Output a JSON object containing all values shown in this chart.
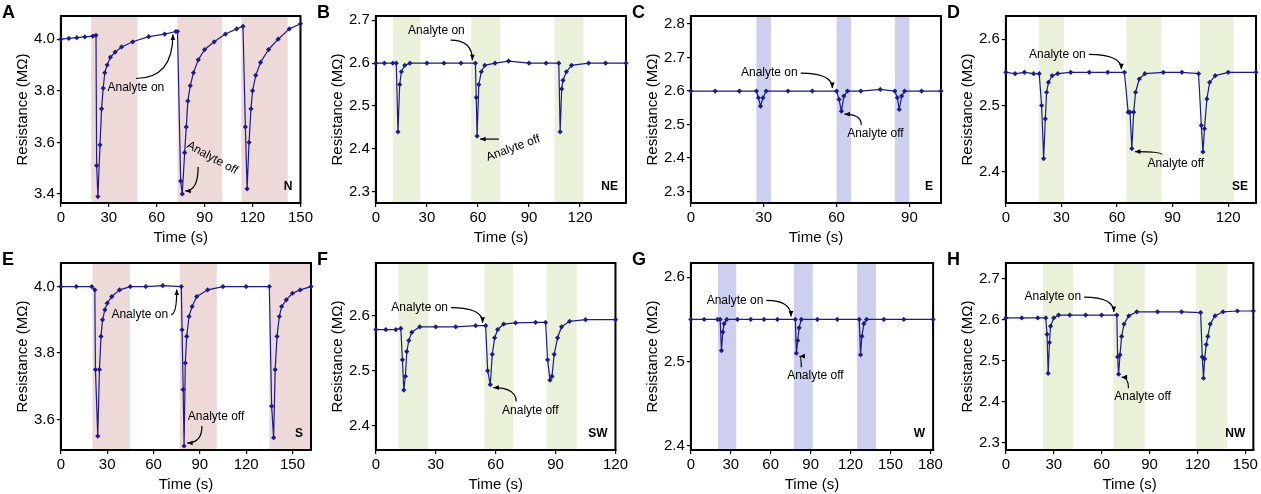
{
  "chart_data": [
    {
      "type": "line",
      "title": "A",
      "xlabel": "Time (s)",
      "ylabel": "Resistance (MΩ)",
      "xlim": [
        0,
        150
      ],
      "ylim": [
        3.365,
        4.09
      ],
      "xticks": [
        0,
        30,
        60,
        90,
        120,
        150
      ],
      "yticks": [
        3.4,
        3.6,
        3.8,
        {
          "value": 4,
          "label": "4.0"
        }
      ],
      "marker": "diamond",
      "line_style": "solid",
      "legend": false,
      "bands": [
        {
          "axis": "x",
          "from": 19,
          "to": 48,
          "color": "#eed9d9"
        },
        {
          "axis": "x",
          "from": 73,
          "to": 101,
          "color": "#eed9d9"
        },
        {
          "axis": "x",
          "from": 113,
          "to": 142,
          "color": "#eed9d9"
        }
      ],
      "annotations": [
        "N",
        {
          "text": "Analyte on",
          "x": 72,
          "y": 4.03
        },
        {
          "text": "Analyte off",
          "x": 76,
          "y": 3.4
        }
      ],
      "series": [
        {
          "color": "#1b1b8f",
          "x": [
            0,
            5,
            10,
            15,
            20,
            22,
            22.4,
            23.2,
            24.5,
            25.5,
            26.5,
            27.5,
            29,
            31,
            34,
            38,
            45,
            55,
            65,
            72,
            73,
            75,
            76,
            77.5,
            78.5,
            79.5,
            81,
            83,
            86,
            90,
            96,
            103,
            110,
            114,
            115.5,
            116.6,
            117.8,
            119,
            120,
            122,
            125,
            130,
            136,
            143,
            150
          ],
          "values": [
            4.0,
            4.003,
            4.006,
            4.009,
            4.012,
            4.015,
            3.51,
            3.39,
            3.59,
            3.73,
            3.81,
            3.87,
            3.9,
            3.93,
            3.95,
            3.97,
            3.99,
            4.01,
            4.02,
            4.03,
            4.03,
            3.45,
            3.4,
            3.56,
            3.66,
            3.76,
            3.82,
            3.87,
            3.92,
            3.96,
            3.99,
            4.02,
            4.04,
            4.05,
            3.66,
            3.42,
            3.6,
            3.73,
            3.8,
            3.86,
            3.91,
            3.96,
            4.0,
            4.04,
            4.06
          ]
        }
      ]
    },
    {
      "type": "line",
      "title": "B",
      "xlabel": "Time (s)",
      "ylabel": "Resistance (MΩ)",
      "xlim": [
        0,
        147
      ],
      "ylim": [
        2.274,
        2.71
      ],
      "xticks": [
        0,
        30,
        60,
        90,
        120
      ],
      "yticks": [
        2.3,
        2.4,
        2.5,
        2.6,
        2.7
      ],
      "marker": "diamond",
      "line_style": "solid",
      "legend": false,
      "bands": [
        {
          "axis": "x",
          "from": 10,
          "to": 26,
          "color": "#e9f2d9"
        },
        {
          "axis": "x",
          "from": 56,
          "to": 73,
          "color": "#e9f2d9"
        },
        {
          "axis": "x",
          "from": 105,
          "to": 122,
          "color": "#e9f2d9"
        }
      ],
      "annotations": [
        "NE",
        {
          "text": "Analyte on",
          "x": 58.5,
          "y": 2.6
        },
        {
          "text": "Analyte off",
          "x": 59.5,
          "y": 2.43
        }
      ],
      "series": [
        {
          "color": "#1b1b8f",
          "x": [
            0,
            5,
            10,
            12,
            13,
            14,
            15,
            17,
            20,
            30,
            40,
            50,
            58.5,
            59,
            59.5,
            60.5,
            62,
            64,
            70,
            78,
            90,
            100,
            107.5,
            108.3,
            109.2,
            110,
            112,
            115,
            125,
            135,
            147
          ],
          "values": [
            2.6,
            2.6,
            2.6,
            2.6,
            2.44,
            2.55,
            2.58,
            2.595,
            2.6,
            2.6,
            2.6,
            2.6,
            2.6,
            2.52,
            2.43,
            2.55,
            2.58,
            2.595,
            2.6,
            2.605,
            2.6,
            2.6,
            2.6,
            2.44,
            2.54,
            2.56,
            2.58,
            2.595,
            2.6,
            2.6,
            2.6
          ]
        }
      ]
    },
    {
      "type": "line",
      "title": "C",
      "xlabel": "Time (s)",
      "ylabel": "Resistance (MΩ)",
      "xlim": [
        0,
        103
      ],
      "ylim": [
        2.266,
        2.824
      ],
      "xticks": [
        0,
        30,
        60,
        90
      ],
      "yticks": [
        2.3,
        2.4,
        2.5,
        2.6,
        2.7,
        2.8
      ],
      "marker": "diamond",
      "line_style": "solid",
      "legend": false,
      "bands": [
        {
          "axis": "x",
          "from": 27,
          "to": 33,
          "color": "#ccd0ee"
        },
        {
          "axis": "x",
          "from": 60,
          "to": 66,
          "color": "#ccd0ee"
        },
        {
          "axis": "x",
          "from": 84,
          "to": 90,
          "color": "#ccd0ee"
        }
      ],
      "annotations": [
        "E",
        {
          "text": "Analyte on",
          "x": 59.5,
          "y": 2.6
        },
        {
          "text": "Analyte off",
          "x": 62,
          "y": 2.54
        }
      ],
      "series": [
        {
          "color": "#1b1b8f",
          "x": [
            0,
            10,
            20,
            27,
            27.8,
            28.7,
            29.7,
            31,
            40,
            50,
            60,
            61,
            62,
            63,
            64.5,
            70,
            78,
            84,
            85,
            85.8,
            86.8,
            88,
            95,
            103
          ],
          "values": [
            2.6,
            2.6,
            2.6,
            2.6,
            2.58,
            2.555,
            2.58,
            2.6,
            2.6,
            2.6,
            2.6,
            2.575,
            2.54,
            2.585,
            2.6,
            2.6,
            2.605,
            2.6,
            2.58,
            2.545,
            2.585,
            2.6,
            2.6,
            2.6
          ]
        }
      ]
    },
    {
      "type": "line",
      "title": "D",
      "xlabel": "Time (s)",
      "ylabel": "Resistance (MΩ)",
      "xlim": [
        0,
        135
      ],
      "ylim": [
        2.353,
        2.635
      ],
      "xticks": [
        0,
        30,
        60,
        90,
        120
      ],
      "yticks": [
        2.4,
        2.5,
        2.6
      ],
      "marker": "diamond",
      "line_style": "solid",
      "legend": false,
      "bands": [
        {
          "axis": "x",
          "from": 17.7,
          "to": 31.3,
          "color": "#e9f2d9"
        },
        {
          "axis": "x",
          "from": 65,
          "to": 84,
          "color": "#e9f2d9"
        },
        {
          "axis": "x",
          "from": 104.7,
          "to": 123,
          "color": "#e9f2d9"
        }
      ],
      "annotations": [
        "SE",
        {
          "text": "Analyte on",
          "x": 64,
          "y": 2.55
        },
        {
          "text": "Analyte off",
          "x": 68,
          "y": 2.435
        }
      ],
      "series": [
        {
          "color": "#1b1b8f",
          "x": [
            0,
            5,
            10,
            15,
            18,
            19.3,
            20.4,
            21.3,
            22,
            23,
            25,
            28,
            35,
            45,
            55,
            64,
            66,
            67,
            68,
            69,
            70,
            72,
            75,
            85,
            95,
            104,
            105.5,
            106.4,
            107.2,
            108.5,
            110,
            113,
            120,
            135
          ],
          "values": [
            2.55,
            2.548,
            2.55,
            2.548,
            2.548,
            2.5,
            2.42,
            2.48,
            2.52,
            2.535,
            2.545,
            2.548,
            2.55,
            2.55,
            2.55,
            2.55,
            2.49,
            2.49,
            2.435,
            2.49,
            2.52,
            2.54,
            2.548,
            2.55,
            2.55,
            2.548,
            2.47,
            2.43,
            2.465,
            2.51,
            2.535,
            2.545,
            2.55,
            2.55
          ]
        }
      ]
    },
    {
      "type": "line",
      "title": "E",
      "xlabel": "Time (s)",
      "ylabel": "Resistance (MΩ)",
      "xlim": [
        0,
        162
      ],
      "ylim": [
        3.508,
        4.071
      ],
      "xticks": [
        0,
        30,
        60,
        90,
        120,
        150
      ],
      "yticks": [
        3.6,
        3.8,
        {
          "value": 4,
          "label": "4.0"
        }
      ],
      "marker": "diamond",
      "line_style": "solid",
      "legend": false,
      "bands": [
        {
          "axis": "x",
          "from": 20.5,
          "to": 44.7,
          "color": "#eed9d9"
        },
        {
          "axis": "x",
          "from": 77,
          "to": 101,
          "color": "#eed9d9"
        },
        {
          "axis": "x",
          "from": 135,
          "to": 162,
          "color": "#eed9d9"
        }
      ],
      "annotations": [
        "S",
        {
          "text": "Analyte on",
          "x": 77,
          "y": 4.0
        },
        {
          "text": "Analyte off",
          "x": 79.8,
          "y": 3.52
        }
      ],
      "series": [
        {
          "color": "#1b1b8f",
          "x": [
            0,
            10,
            20,
            22,
            22.4,
            23.9,
            25,
            26,
            27,
            28.5,
            30,
            33,
            38,
            45,
            55,
            66,
            78,
            78.5,
            79.2,
            79.8,
            80.6,
            81.5,
            83,
            85,
            88,
            95,
            105,
            120,
            135,
            136.5,
            137.8,
            138.8,
            140,
            141.5,
            143,
            146,
            150,
            155,
            162
          ],
          "values": [
            4.0,
            4.0,
            4.0,
            3.99,
            3.75,
            3.55,
            3.75,
            3.85,
            3.9,
            3.93,
            3.95,
            3.97,
            3.99,
            4.0,
            4.0,
            4.003,
            4.0,
            3.87,
            3.69,
            3.52,
            3.77,
            3.85,
            3.91,
            3.94,
            3.97,
            3.99,
            4.0,
            4.0,
            4.0,
            3.64,
            3.545,
            3.75,
            3.85,
            3.91,
            3.94,
            3.96,
            3.98,
            3.99,
            4.0
          ]
        }
      ]
    },
    {
      "type": "line",
      "title": "F",
      "xlabel": "Time (s)",
      "ylabel": "Resistance (MΩ)",
      "xlim": [
        0,
        120
      ],
      "ylim": [
        2.356,
        2.696
      ],
      "xticks": [
        0,
        30,
        60,
        90,
        120
      ],
      "yticks": [
        2.4,
        2.5,
        2.6
      ],
      "marker": "diamond",
      "line_style": "solid",
      "legend": false,
      "bands": [
        {
          "axis": "x",
          "from": 11.3,
          "to": 26.2,
          "color": "#e9f2d9"
        },
        {
          "axis": "x",
          "from": 54.4,
          "to": 68.7,
          "color": "#e9f2d9"
        },
        {
          "axis": "x",
          "from": 85.6,
          "to": 100.6,
          "color": "#e9f2d9"
        }
      ],
      "annotations": [
        "SW",
        {
          "text": "Analyte on",
          "x": 55,
          "y": 2.582
        },
        {
          "text": "Analyte off",
          "x": 57.3,
          "y": 2.475
        }
      ],
      "series": [
        {
          "color": "#1b1b8f",
          "x": [
            0,
            5,
            10,
            12.5,
            13.3,
            14,
            14.8,
            15.5,
            16.5,
            18,
            22,
            30,
            40,
            50,
            55,
            56,
            57.3,
            58.3,
            59.5,
            61,
            64,
            70,
            80,
            85,
            86,
            87.2,
            88.2,
            89.3,
            91,
            93,
            97,
            105,
            120
          ],
          "values": [
            2.575,
            2.575,
            2.575,
            2.577,
            2.52,
            2.465,
            2.49,
            2.535,
            2.555,
            2.57,
            2.58,
            2.58,
            2.58,
            2.582,
            2.582,
            2.5,
            2.475,
            2.53,
            2.56,
            2.575,
            2.585,
            2.587,
            2.588,
            2.588,
            2.52,
            2.483,
            2.49,
            2.53,
            2.56,
            2.58,
            2.59,
            2.593,
            2.593
          ]
        }
      ]
    },
    {
      "type": "line",
      "title": "G",
      "xlabel": "Time (s)",
      "ylabel": "Resistance (MΩ)",
      "xlim": [
        0,
        182
      ],
      "ylim": [
        2.395,
        2.617
      ],
      "xticks": [
        0,
        30,
        60,
        90,
        120,
        150,
        180
      ],
      "yticks": [
        2.4,
        2.5,
        2.6
      ],
      "marker": "diamond",
      "line_style": "solid",
      "legend": false,
      "bands": [
        {
          "axis": "x",
          "from": 20.4,
          "to": 34.1,
          "color": "#ccd0ee"
        },
        {
          "axis": "x",
          "from": 77.3,
          "to": 91.6,
          "color": "#ccd0ee"
        },
        {
          "axis": "x",
          "from": 124.9,
          "to": 139.1,
          "color": "#ccd0ee"
        }
      ],
      "annotations": [
        "W",
        {
          "text": "Analyte on",
          "x": 77.5,
          "y": 2.55
        },
        {
          "text": "Analyte off",
          "x": 79.3,
          "y": 2.51
        }
      ],
      "series": [
        {
          "color": "#1b1b8f",
          "x": [
            0,
            10,
            20,
            22,
            23,
            24,
            25,
            27,
            35,
            45,
            55,
            65,
            78.5,
            79.3,
            80.3,
            81.3,
            83,
            95,
            110,
            126.5,
            127.5,
            128.5,
            130,
            132,
            145,
            160,
            182
          ],
          "values": [
            2.55,
            2.55,
            2.55,
            2.55,
            2.513,
            2.535,
            2.545,
            2.55,
            2.55,
            2.55,
            2.55,
            2.55,
            2.55,
            2.51,
            2.525,
            2.54,
            2.55,
            2.55,
            2.55,
            2.55,
            2.508,
            2.53,
            2.545,
            2.55,
            2.55,
            2.55,
            2.55
          ]
        }
      ]
    },
    {
      "type": "line",
      "title": "H",
      "xlabel": "Time (s)",
      "ylabel": "Resistance (MΩ)",
      "xlim": [
        0,
        155
      ],
      "ylim": [
        2.283,
        2.739
      ],
      "xticks": [
        0,
        30,
        60,
        90,
        120,
        150
      ],
      "yticks": [
        2.3,
        2.4,
        2.5,
        2.6,
        2.7
      ],
      "marker": "diamond",
      "line_style": "solid",
      "legend": false,
      "bands": [
        {
          "axis": "x",
          "from": 23.2,
          "to": 42.1,
          "color": "#e9f2d9"
        },
        {
          "axis": "x",
          "from": 67.3,
          "to": 87,
          "color": "#e9f2d9"
        },
        {
          "axis": "x",
          "from": 119.2,
          "to": 138.6,
          "color": "#e9f2d9"
        }
      ],
      "annotations": [
        "NW",
        {
          "text": "Analyte on",
          "x": 69.5,
          "y": 2.612
        },
        {
          "text": "Analyte off",
          "x": 70.6,
          "y": 2.468
        }
      ],
      "series": [
        {
          "color": "#1b1b8f",
          "x": [
            0,
            10,
            20,
            25,
            25.8,
            26.5,
            27.3,
            28,
            30,
            33,
            40,
            50,
            60,
            69.5,
            70,
            70.6,
            71.5,
            72.5,
            74,
            77,
            82,
            95,
            110,
            122,
            123,
            123.8,
            124.5,
            125.5,
            126.5,
            128,
            131,
            136,
            145,
            155
          ],
          "values": [
            2.605,
            2.605,
            2.605,
            2.605,
            2.565,
            2.47,
            2.545,
            2.585,
            2.605,
            2.612,
            2.612,
            2.612,
            2.612,
            2.612,
            2.51,
            2.468,
            2.515,
            2.56,
            2.59,
            2.61,
            2.62,
            2.62,
            2.62,
            2.618,
            2.51,
            2.458,
            2.505,
            2.54,
            2.56,
            2.59,
            2.61,
            2.62,
            2.622,
            2.622
          ]
        }
      ]
    }
  ]
}
